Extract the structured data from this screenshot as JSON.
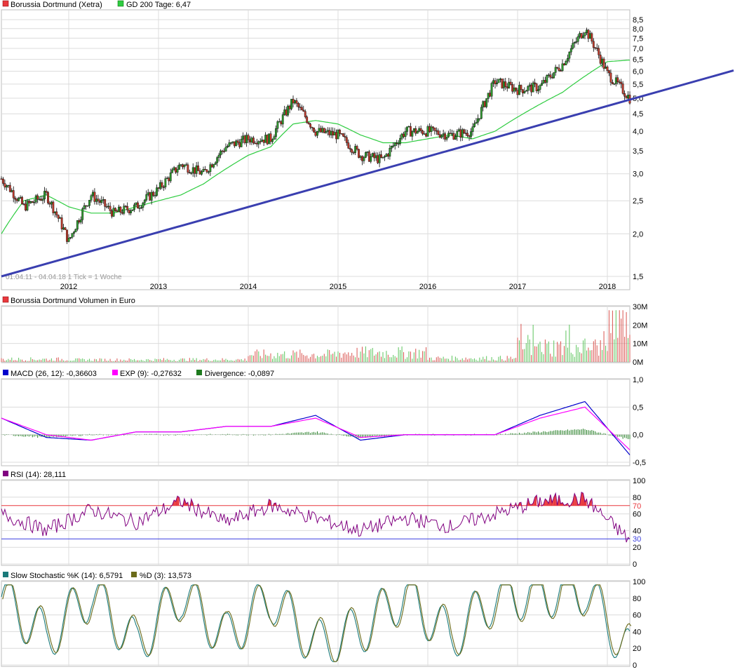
{
  "colors": {
    "price_swatch": "#e8383d",
    "sma_color": "#2ecc40",
    "trendline": "#3a3fb0",
    "candle_up": "#2e9a2e",
    "candle_down": "#c0392b",
    "volume_up": "#5cc45c",
    "volume_down": "#d9534f",
    "macd": "#0000cc",
    "exp": "#ff00ff",
    "divergence": "#1e7a1e",
    "rsi": "#800080",
    "rsi_over": "#e8383d",
    "k_line": "#1a7a7a",
    "d_line": "#6b6b1a",
    "grid": "#dcdcdc"
  },
  "price_panel": {
    "legend": [
      {
        "label": "Borussia Dortmund (Xetra)",
        "swatch": "#e8383d"
      },
      {
        "label": "GD 200 Tage: 6,47",
        "swatch": "#2ecc40"
      }
    ],
    "y_ticks": [
      "8,5",
      "8,0",
      "7,5",
      "7,0",
      "6,5",
      "6,0",
      "5,5",
      "5,0",
      "4,5",
      "4,0",
      "3,5",
      "3,0",
      "2,5",
      "2,0",
      "1,5"
    ],
    "x_ticks": [
      "2012",
      "2013",
      "2014",
      "2015",
      "2016",
      "2017",
      "2018"
    ],
    "range_note": "01.04.11 - 04.04.18   1 Tick = 1 Woche"
  },
  "volume_panel": {
    "legend": [
      {
        "label": "Borussia Dortmund Volumen in Euro",
        "swatch": "#e8383d"
      }
    ],
    "y_ticks": [
      "30M",
      "20M",
      "10M",
      "0M"
    ]
  },
  "macd_panel": {
    "legend": [
      {
        "label": "MACD (26, 12): -0,36603",
        "swatch": "#0000cc"
      },
      {
        "label": "EXP (9): -0,27632",
        "swatch": "#ff00ff"
      },
      {
        "label": "Divergence: -0,0897",
        "swatch": "#1e7a1e"
      }
    ],
    "y_ticks": [
      "1,0",
      "0,5",
      "0,0",
      "-0,5"
    ]
  },
  "rsi_panel": {
    "legend": [
      {
        "label": "RSI (14): 28,111",
        "swatch": "#800080"
      }
    ],
    "y_ticks": [
      "100",
      "80",
      "60",
      "40",
      "20",
      "0"
    ],
    "upper_label": "70",
    "lower_label": "30"
  },
  "stoch_panel": {
    "legend": [
      {
        "label": "Slow Stochastic %K (14): 6,5791",
        "swatch": "#1a7a7a"
      },
      {
        "label": "%D (3): 13,573",
        "swatch": "#6b6b1a"
      }
    ],
    "y_ticks": [
      "100",
      "80",
      "60",
      "40",
      "20",
      "0"
    ]
  },
  "chart_data": [
    {
      "type": "line",
      "title": "Borussia Dortmund (Xetra)",
      "scale": "log",
      "ylim": [
        1.5,
        8.5
      ],
      "x": [
        "2011-04",
        "2011-07",
        "2011-10",
        "2012-01",
        "2012-04",
        "2012-07",
        "2012-10",
        "2013-01",
        "2013-04",
        "2013-07",
        "2013-10",
        "2014-01",
        "2014-04",
        "2014-07",
        "2014-10",
        "2015-01",
        "2015-04",
        "2015-07",
        "2015-10",
        "2016-01",
        "2016-04",
        "2016-07",
        "2016-10",
        "2017-01",
        "2017-04",
        "2017-07",
        "2017-10",
        "2018-01",
        "2018-04"
      ],
      "series": [
        {
          "name": "Borussia Dortmund (Xetra)",
          "values": [
            2.9,
            2.4,
            2.6,
            1.9,
            2.6,
            2.3,
            2.4,
            2.7,
            3.2,
            3.0,
            3.6,
            3.8,
            3.8,
            4.9,
            4.0,
            3.9,
            3.4,
            3.3,
            4.0,
            4.0,
            3.9,
            4.0,
            5.6,
            5.3,
            5.4,
            6.3,
            8.0,
            5.9,
            5.0
          ]
        },
        {
          "name": "GD 200 Tage: 6,47",
          "values": [
            2.0,
            2.5,
            2.6,
            2.4,
            2.3,
            2.3,
            2.4,
            2.5,
            2.6,
            2.8,
            3.1,
            3.4,
            3.6,
            4.2,
            4.3,
            4.2,
            3.9,
            3.7,
            3.7,
            3.8,
            3.9,
            3.8,
            4.0,
            4.4,
            4.8,
            5.2,
            5.8,
            6.4,
            6.47
          ]
        }
      ],
      "trendline": {
        "from": [
          "2011-04",
          1.5
        ],
        "to": [
          "2018-04",
          4.95
        ]
      }
    },
    {
      "type": "bar",
      "title": "Borussia Dortmund Volumen in Euro",
      "ylim": [
        0,
        30
      ],
      "unit": "M",
      "x": [
        "2011",
        "2012",
        "2013",
        "2014",
        "2015",
        "2016",
        "2017",
        "2018"
      ],
      "series": [
        {
          "name": "Borussia Dortmund Volumen in Euro",
          "values": [
            1.5,
            1.2,
            1.3,
            4,
            5,
            2,
            8,
            18
          ]
        }
      ]
    },
    {
      "type": "line",
      "ylim": [
        -0.5,
        1.0
      ],
      "x": [
        "2011-04",
        "2011-10",
        "2012-04",
        "2012-10",
        "2013-04",
        "2013-10",
        "2014-04",
        "2014-10",
        "2015-04",
        "2015-10",
        "2016-04",
        "2016-10",
        "2017-04",
        "2017-10",
        "2018-04"
      ],
      "series": [
        {
          "name": "MACD (26, 12): -0,36603",
          "values": [
            0.3,
            -0.05,
            -0.1,
            0.05,
            0.05,
            0.15,
            0.15,
            0.35,
            -0.1,
            0.0,
            0.0,
            0.0,
            0.35,
            0.6,
            -0.36603
          ]
        },
        {
          "name": "EXP (9): -0,27632",
          "values": [
            0.3,
            0.0,
            -0.1,
            0.05,
            0.05,
            0.15,
            0.15,
            0.3,
            -0.05,
            0.0,
            0.0,
            0.0,
            0.3,
            0.5,
            -0.27632
          ]
        },
        {
          "name": "Divergence: -0,0897",
          "values": [
            0.0,
            -0.05,
            0.0,
            0.0,
            0.0,
            0.0,
            0.0,
            0.05,
            -0.05,
            0.0,
            0.0,
            0.0,
            0.05,
            0.1,
            -0.0897
          ]
        }
      ]
    },
    {
      "type": "line",
      "ylim": [
        0,
        100
      ],
      "x": [
        "2011-04",
        "2011-10",
        "2012-04",
        "2012-10",
        "2013-04",
        "2013-10",
        "2014-04",
        "2014-10",
        "2015-04",
        "2015-10",
        "2016-04",
        "2016-10",
        "2017-04",
        "2017-10",
        "2018-04"
      ],
      "series": [
        {
          "name": "RSI (14): 28,111",
          "values": [
            60,
            40,
            65,
            50,
            75,
            50,
            70,
            55,
            40,
            55,
            45,
            60,
            75,
            78,
            28.111
          ]
        }
      ],
      "thresholds": [
        70,
        30
      ]
    },
    {
      "type": "line",
      "ylim": [
        0,
        100
      ],
      "x": [
        "2011-04",
        "2011-10",
        "2012-04",
        "2012-10",
        "2013-04",
        "2013-10",
        "2014-04",
        "2014-10",
        "2015-04",
        "2015-10",
        "2016-04",
        "2016-10",
        "2017-04",
        "2017-10",
        "2018-04"
      ],
      "series": [
        {
          "name": "Slow Stochastic %K (14): 6,5791",
          "values": [
            85,
            30,
            90,
            20,
            90,
            30,
            85,
            20,
            40,
            90,
            30,
            85,
            90,
            95,
            6.5791
          ]
        },
        {
          "name": "%D (3): 13,573",
          "values": [
            82,
            33,
            88,
            23,
            88,
            32,
            82,
            23,
            42,
            87,
            33,
            82,
            88,
            93,
            13.573
          ]
        }
      ]
    }
  ]
}
